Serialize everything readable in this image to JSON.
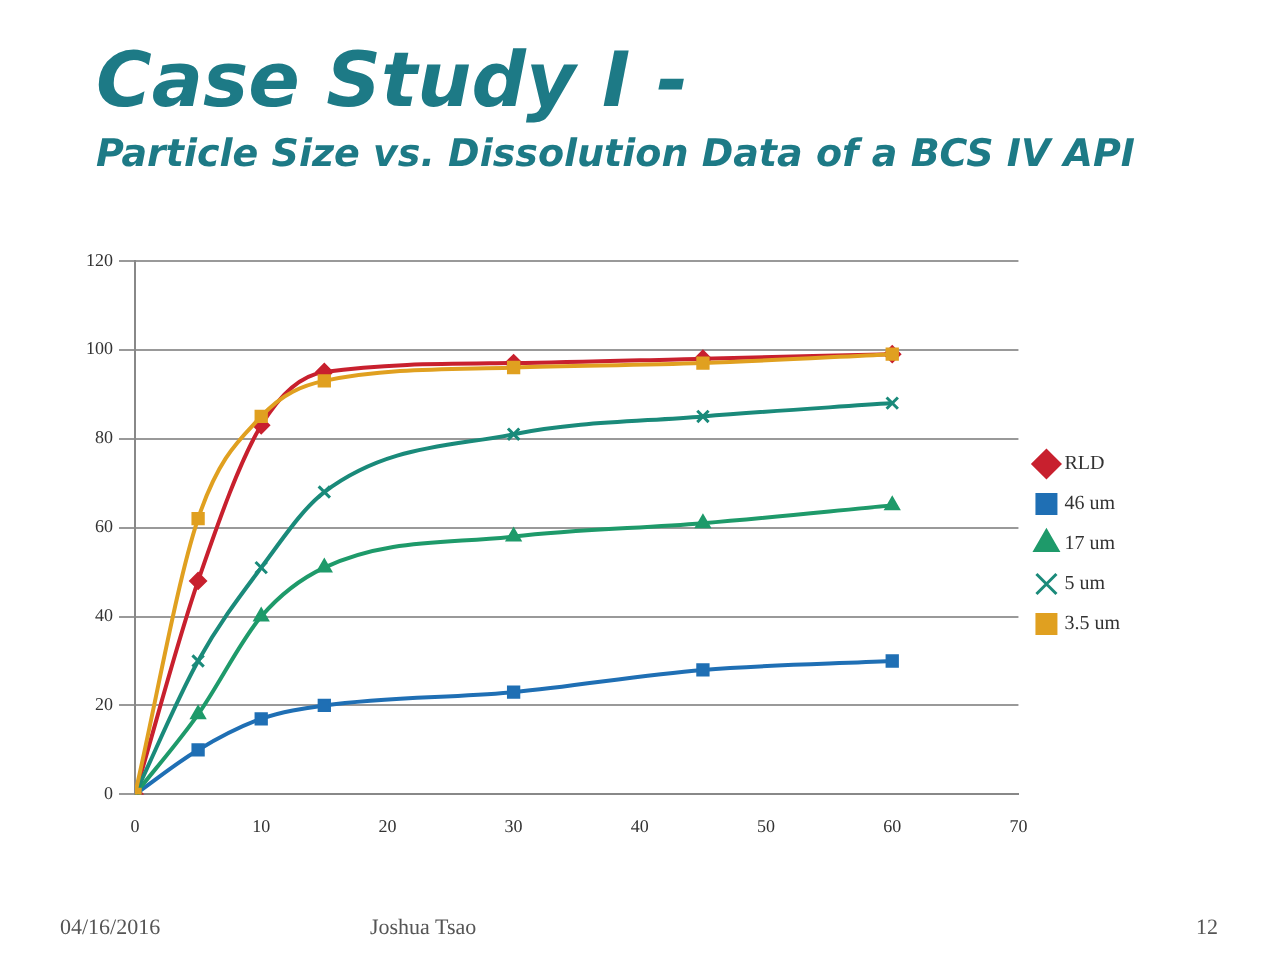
{
  "chart_data": {
    "type": "line",
    "title": "Case Study I -",
    "subtitle": "Particle Size vs. Dissolution Data of a BCS IV API",
    "x": [
      0,
      5,
      10,
      15,
      30,
      45,
      60
    ],
    "series": [
      {
        "name": "RLD",
        "color": "#c8202e",
        "marker": "diamond",
        "values": [
          0,
          48,
          83,
          95,
          97,
          98,
          99
        ]
      },
      {
        "name": "46 um",
        "color": "#1f6fb4",
        "marker": "square",
        "values": [
          0,
          10,
          17,
          20,
          23,
          28,
          30
        ]
      },
      {
        "name": "17 um",
        "color": "#1e9a6a",
        "marker": "triangle",
        "values": [
          0,
          18,
          40,
          51,
          58,
          61,
          65
        ]
      },
      {
        "name": "5 um",
        "color": "#1a8a7a",
        "marker": "cross",
        "values": [
          0,
          30,
          51,
          68,
          81,
          85,
          88
        ]
      },
      {
        "name": "3.5 um",
        "color": "#e0a020",
        "marker": "square",
        "values": [
          0,
          62,
          85,
          93,
          96,
          97,
          99
        ]
      }
    ],
    "xlim": [
      0,
      70
    ],
    "xticks": [
      0,
      10,
      20,
      30,
      40,
      50,
      60,
      70
    ],
    "ylim": [
      0,
      120
    ],
    "yticks": [
      0,
      20,
      40,
      60,
      80,
      100,
      120
    ],
    "grid": "y",
    "legend": "right",
    "annotations": [
      "04/16/2016",
      "Joshua Tsao",
      "12"
    ]
  }
}
